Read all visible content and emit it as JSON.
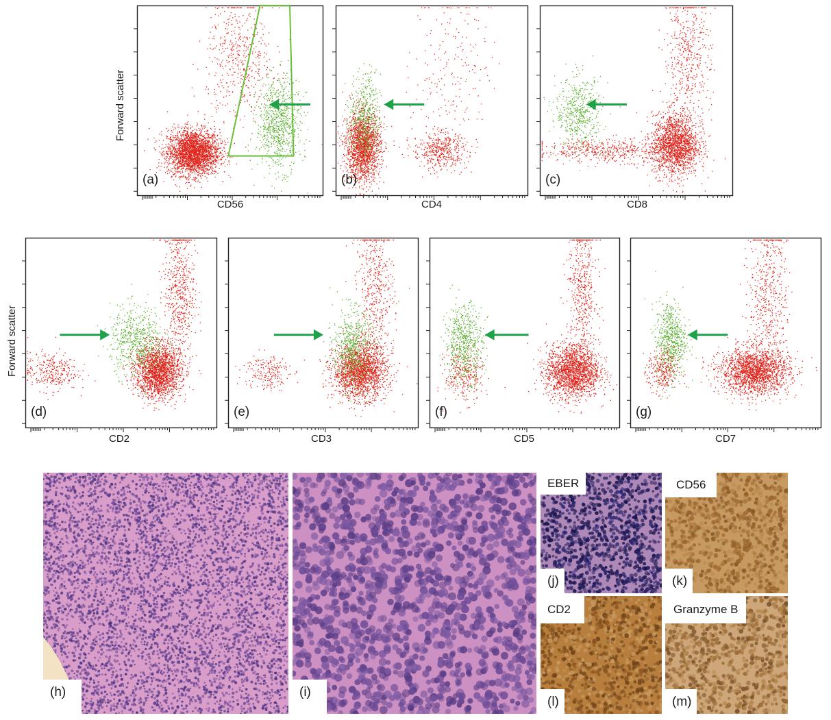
{
  "chart_data": [
    {
      "id": "a",
      "type": "scatter",
      "panel_label": "(a)",
      "xlabel": "CD56",
      "ylabel": "Forward scatter",
      "x_scale": "log",
      "gate": "green polygon gate around CD56-positive population",
      "arrow": "green, pointing left at green population",
      "series": [
        {
          "name": "",
          "color": "#e0241b",
          "clusters": [
            {
              "x": 0.3,
              "y": 0.23,
              "n": 2600
            },
            {
              "x": 0.55,
              "y": 0.72,
              "n": 500
            }
          ]
        },
        {
          "name": "",
          "color": "#5cb030",
          "clusters": [
            {
              "x": 0.76,
              "y": 0.38,
              "n": 800
            }
          ]
        }
      ]
    },
    {
      "id": "b",
      "type": "scatter",
      "panel_label": "(b)",
      "xlabel": "CD4",
      "ylabel": "",
      "x_scale": "log",
      "arrow": "green, pointing left at green population",
      "series": [
        {
          "name": "",
          "color": "#e0241b",
          "clusters": [
            {
              "x": 0.14,
              "y": 0.26,
              "n": 1800
            },
            {
              "x": 0.54,
              "y": 0.24,
              "n": 450
            },
            {
              "x": 0.6,
              "y": 0.7,
              "n": 200
            }
          ]
        },
        {
          "name": "",
          "color": "#5cb030",
          "clusters": [
            {
              "x": 0.15,
              "y": 0.4,
              "n": 500
            }
          ]
        }
      ]
    },
    {
      "id": "c",
      "type": "scatter",
      "panel_label": "(c)",
      "xlabel": "CD8",
      "ylabel": "",
      "x_scale": "log",
      "arrow": "green, pointing left at green population",
      "series": [
        {
          "name": "",
          "color": "#e0241b",
          "clusters": [
            {
              "x": 0.7,
              "y": 0.27,
              "n": 1700
            },
            {
              "x": 0.36,
              "y": 0.24,
              "n": 500
            },
            {
              "x": 0.76,
              "y": 0.72,
              "n": 500
            }
          ]
        },
        {
          "name": "",
          "color": "#5cb030",
          "clusters": [
            {
              "x": 0.2,
              "y": 0.44,
              "n": 500
            }
          ]
        }
      ]
    },
    {
      "id": "d",
      "type": "scatter",
      "panel_label": "(d)",
      "xlabel": "CD2",
      "ylabel": "Forward scatter",
      "x_scale": "log",
      "arrow": "green, pointing right at green population",
      "series": [
        {
          "name": "",
          "color": "#e0241b",
          "clusters": [
            {
              "x": 0.69,
              "y": 0.3,
              "n": 1900
            },
            {
              "x": 0.8,
              "y": 0.72,
              "n": 600
            },
            {
              "x": 0.13,
              "y": 0.3,
              "n": 300
            }
          ]
        },
        {
          "name": "",
          "color": "#5cb030",
          "clusters": [
            {
              "x": 0.58,
              "y": 0.46,
              "n": 600
            }
          ]
        }
      ]
    },
    {
      "id": "e",
      "type": "scatter",
      "panel_label": "(e)",
      "xlabel": "CD3",
      "ylabel": "",
      "x_scale": "log",
      "arrow": "green, pointing right at green population",
      "series": [
        {
          "name": "",
          "color": "#e0241b",
          "clusters": [
            {
              "x": 0.69,
              "y": 0.3,
              "n": 1900
            },
            {
              "x": 0.77,
              "y": 0.72,
              "n": 500
            },
            {
              "x": 0.2,
              "y": 0.3,
              "n": 200
            }
          ]
        },
        {
          "name": "",
          "color": "#5cb030",
          "clusters": [
            {
              "x": 0.65,
              "y": 0.42,
              "n": 600
            }
          ]
        }
      ]
    },
    {
      "id": "f",
      "type": "scatter",
      "panel_label": "(f)",
      "xlabel": "CD5",
      "ylabel": "",
      "x_scale": "log",
      "arrow": "green, pointing left at green population",
      "series": [
        {
          "name": "",
          "color": "#e0241b",
          "clusters": [
            {
              "x": 0.75,
              "y": 0.3,
              "n": 1800
            },
            {
              "x": 0.8,
              "y": 0.72,
              "n": 500
            },
            {
              "x": 0.18,
              "y": 0.28,
              "n": 300
            }
          ]
        },
        {
          "name": "",
          "color": "#5cb030",
          "clusters": [
            {
              "x": 0.18,
              "y": 0.45,
              "n": 600
            }
          ]
        }
      ]
    },
    {
      "id": "g",
      "type": "scatter",
      "panel_label": "(g)",
      "xlabel": "CD7",
      "ylabel": "",
      "x_scale": "log",
      "arrow": "green, pointing left at green population",
      "series": [
        {
          "name": "",
          "color": "#e0241b",
          "clusters": [
            {
              "x": 0.65,
              "y": 0.3,
              "n": 1900
            },
            {
              "x": 0.72,
              "y": 0.72,
              "n": 500
            },
            {
              "x": 0.17,
              "y": 0.3,
              "n": 300
            }
          ]
        },
        {
          "name": "",
          "color": "#5cb030",
          "clusters": [
            {
              "x": 0.21,
              "y": 0.47,
              "n": 600
            }
          ]
        }
      ]
    }
  ],
  "micrographs": [
    {
      "id": "h",
      "label": "(h)",
      "tag": "",
      "stain": "H&E low power",
      "bg": "#d89ac7"
    },
    {
      "id": "i",
      "label": "(i)",
      "tag": "",
      "stain": "H&E high power",
      "bg": "#c98bbf"
    },
    {
      "id": "j",
      "label": "(j)",
      "tag": "EBER",
      "stain": "in situ hybridization",
      "bg": "#a67fb0"
    },
    {
      "id": "k",
      "label": "(k)",
      "tag": "CD56",
      "stain": "immunohistochemistry",
      "bg": "#c49155"
    },
    {
      "id": "l",
      "label": "(l)",
      "tag": "CD2",
      "stain": "immunohistochemistry",
      "bg": "#b47a3a"
    },
    {
      "id": "m",
      "label": "(m)",
      "tag": "Granzyme B",
      "stain": "immunohistochemistry",
      "bg": "#c9a070"
    }
  ],
  "colors": {
    "red_events": "#e0241b",
    "green_events": "#5cb030",
    "arrow": "#1fa14a",
    "gate": "#6abf3a"
  }
}
